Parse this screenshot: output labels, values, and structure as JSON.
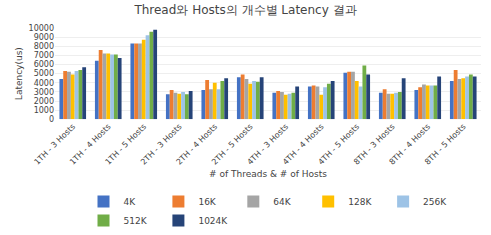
{
  "chart_data": {
    "type": "bar",
    "title": "Thread와 Hosts의 개수별 Latency 결과",
    "xlabel": "# of Threads & # of Hosts",
    "ylabel": "Latency(us)",
    "categories": [
      "1TH - 3 Hosts",
      "1TH - 4 Hosts",
      "1TH - 5 Hosts",
      "2TH - 3 Hosts",
      "2TH - 4 Hosts",
      "2TH - 5 Hosts",
      "4TH - 3 Hosts",
      "4TH - 4 Hosts",
      "4TH - 5 Hosts",
      "8TH - 3 Hosts",
      "8TH - 4 Hosts",
      "8TH - 5 Hosts"
    ],
    "series": [
      {
        "name": "4K",
        "color": "#4472C4",
        "values": [
          4400,
          6400,
          8300,
          2750,
          3200,
          4600,
          2900,
          3600,
          5100,
          2900,
          3200,
          4200
        ]
      },
      {
        "name": "16K",
        "color": "#ED7D31",
        "values": [
          5300,
          7600,
          8300,
          3200,
          4300,
          4900,
          3100,
          3700,
          5200,
          3300,
          3500,
          5400
        ]
      },
      {
        "name": "64K",
        "color": "#A5A5A5",
        "values": [
          5200,
          7200,
          8300,
          2900,
          3300,
          4400,
          3000,
          3600,
          5200,
          2800,
          3800,
          4400
        ]
      },
      {
        "name": "128K",
        "color": "#FFC000",
        "values": [
          4900,
          7200,
          8700,
          2800,
          4000,
          3900,
          2700,
          2700,
          4200,
          2800,
          3700,
          4500
        ]
      },
      {
        "name": "256K",
        "color": "#9DC3E6",
        "values": [
          5300,
          7100,
          9200,
          3000,
          3300,
          4200,
          2800,
          3500,
          3600,
          2900,
          3700,
          4700
        ]
      },
      {
        "name": "512K",
        "color": "#70AD47",
        "values": [
          5400,
          7100,
          9600,
          2750,
          4200,
          4100,
          2900,
          3900,
          5900,
          3000,
          3700,
          4900
        ]
      },
      {
        "name": "1024K",
        "color": "#264478",
        "values": [
          5700,
          6700,
          9800,
          3100,
          4500,
          4600,
          3600,
          4200,
          4900,
          4500,
          4700,
          4700
        ]
      }
    ],
    "ylim": [
      0,
      10000
    ],
    "yticks": [
      0,
      1000,
      2000,
      3000,
      4000,
      5000,
      6000,
      7000,
      8000,
      9000,
      10000
    ],
    "grid": true,
    "legend": "bottom"
  }
}
